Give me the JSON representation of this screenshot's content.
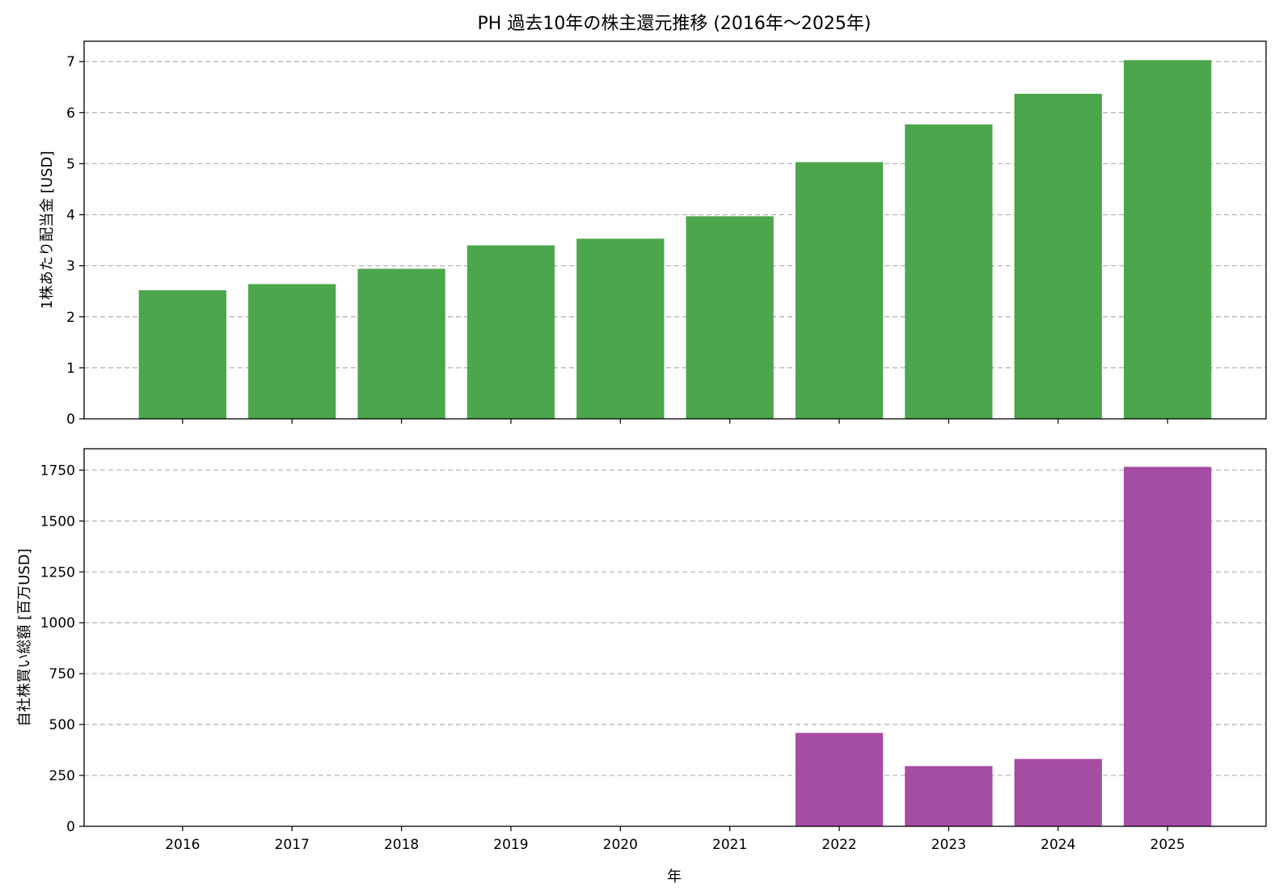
{
  "title": "PH 過去10年の株主還元推移 (2016年〜2025年)",
  "xlabel": "年",
  "colors": {
    "dividend_bar": "#4ca64c",
    "buyback_bar": "#a54ca5",
    "grid": "#b0b0b0",
    "axis": "#000000"
  },
  "chart_data": [
    {
      "type": "bar",
      "categories": [
        "2016",
        "2017",
        "2018",
        "2019",
        "2020",
        "2021",
        "2022",
        "2023",
        "2024",
        "2025"
      ],
      "values": [
        2.52,
        2.64,
        2.94,
        3.4,
        3.53,
        3.97,
        5.03,
        5.77,
        6.37,
        7.03
      ],
      "ylabel": "1株あたり配当金 [USD]",
      "ylim": [
        0,
        7.4
      ],
      "yticks": [
        0,
        1,
        2,
        3,
        4,
        5,
        6,
        7
      ],
      "grid": "y-dashed",
      "show_xtick_labels": false
    },
    {
      "type": "bar",
      "categories": [
        "2016",
        "2017",
        "2018",
        "2019",
        "2020",
        "2021",
        "2022",
        "2023",
        "2024",
        "2025"
      ],
      "values": [
        0,
        0,
        0,
        0,
        0,
        0,
        459,
        296,
        331,
        1766
      ],
      "ylabel": "自社株買い総額 [百万USD]",
      "xlabel": "年",
      "ylim": [
        0,
        1855
      ],
      "yticks": [
        0,
        250,
        500,
        750,
        1000,
        1250,
        1500,
        1750
      ],
      "grid": "y-dashed",
      "show_xtick_labels": true
    }
  ]
}
